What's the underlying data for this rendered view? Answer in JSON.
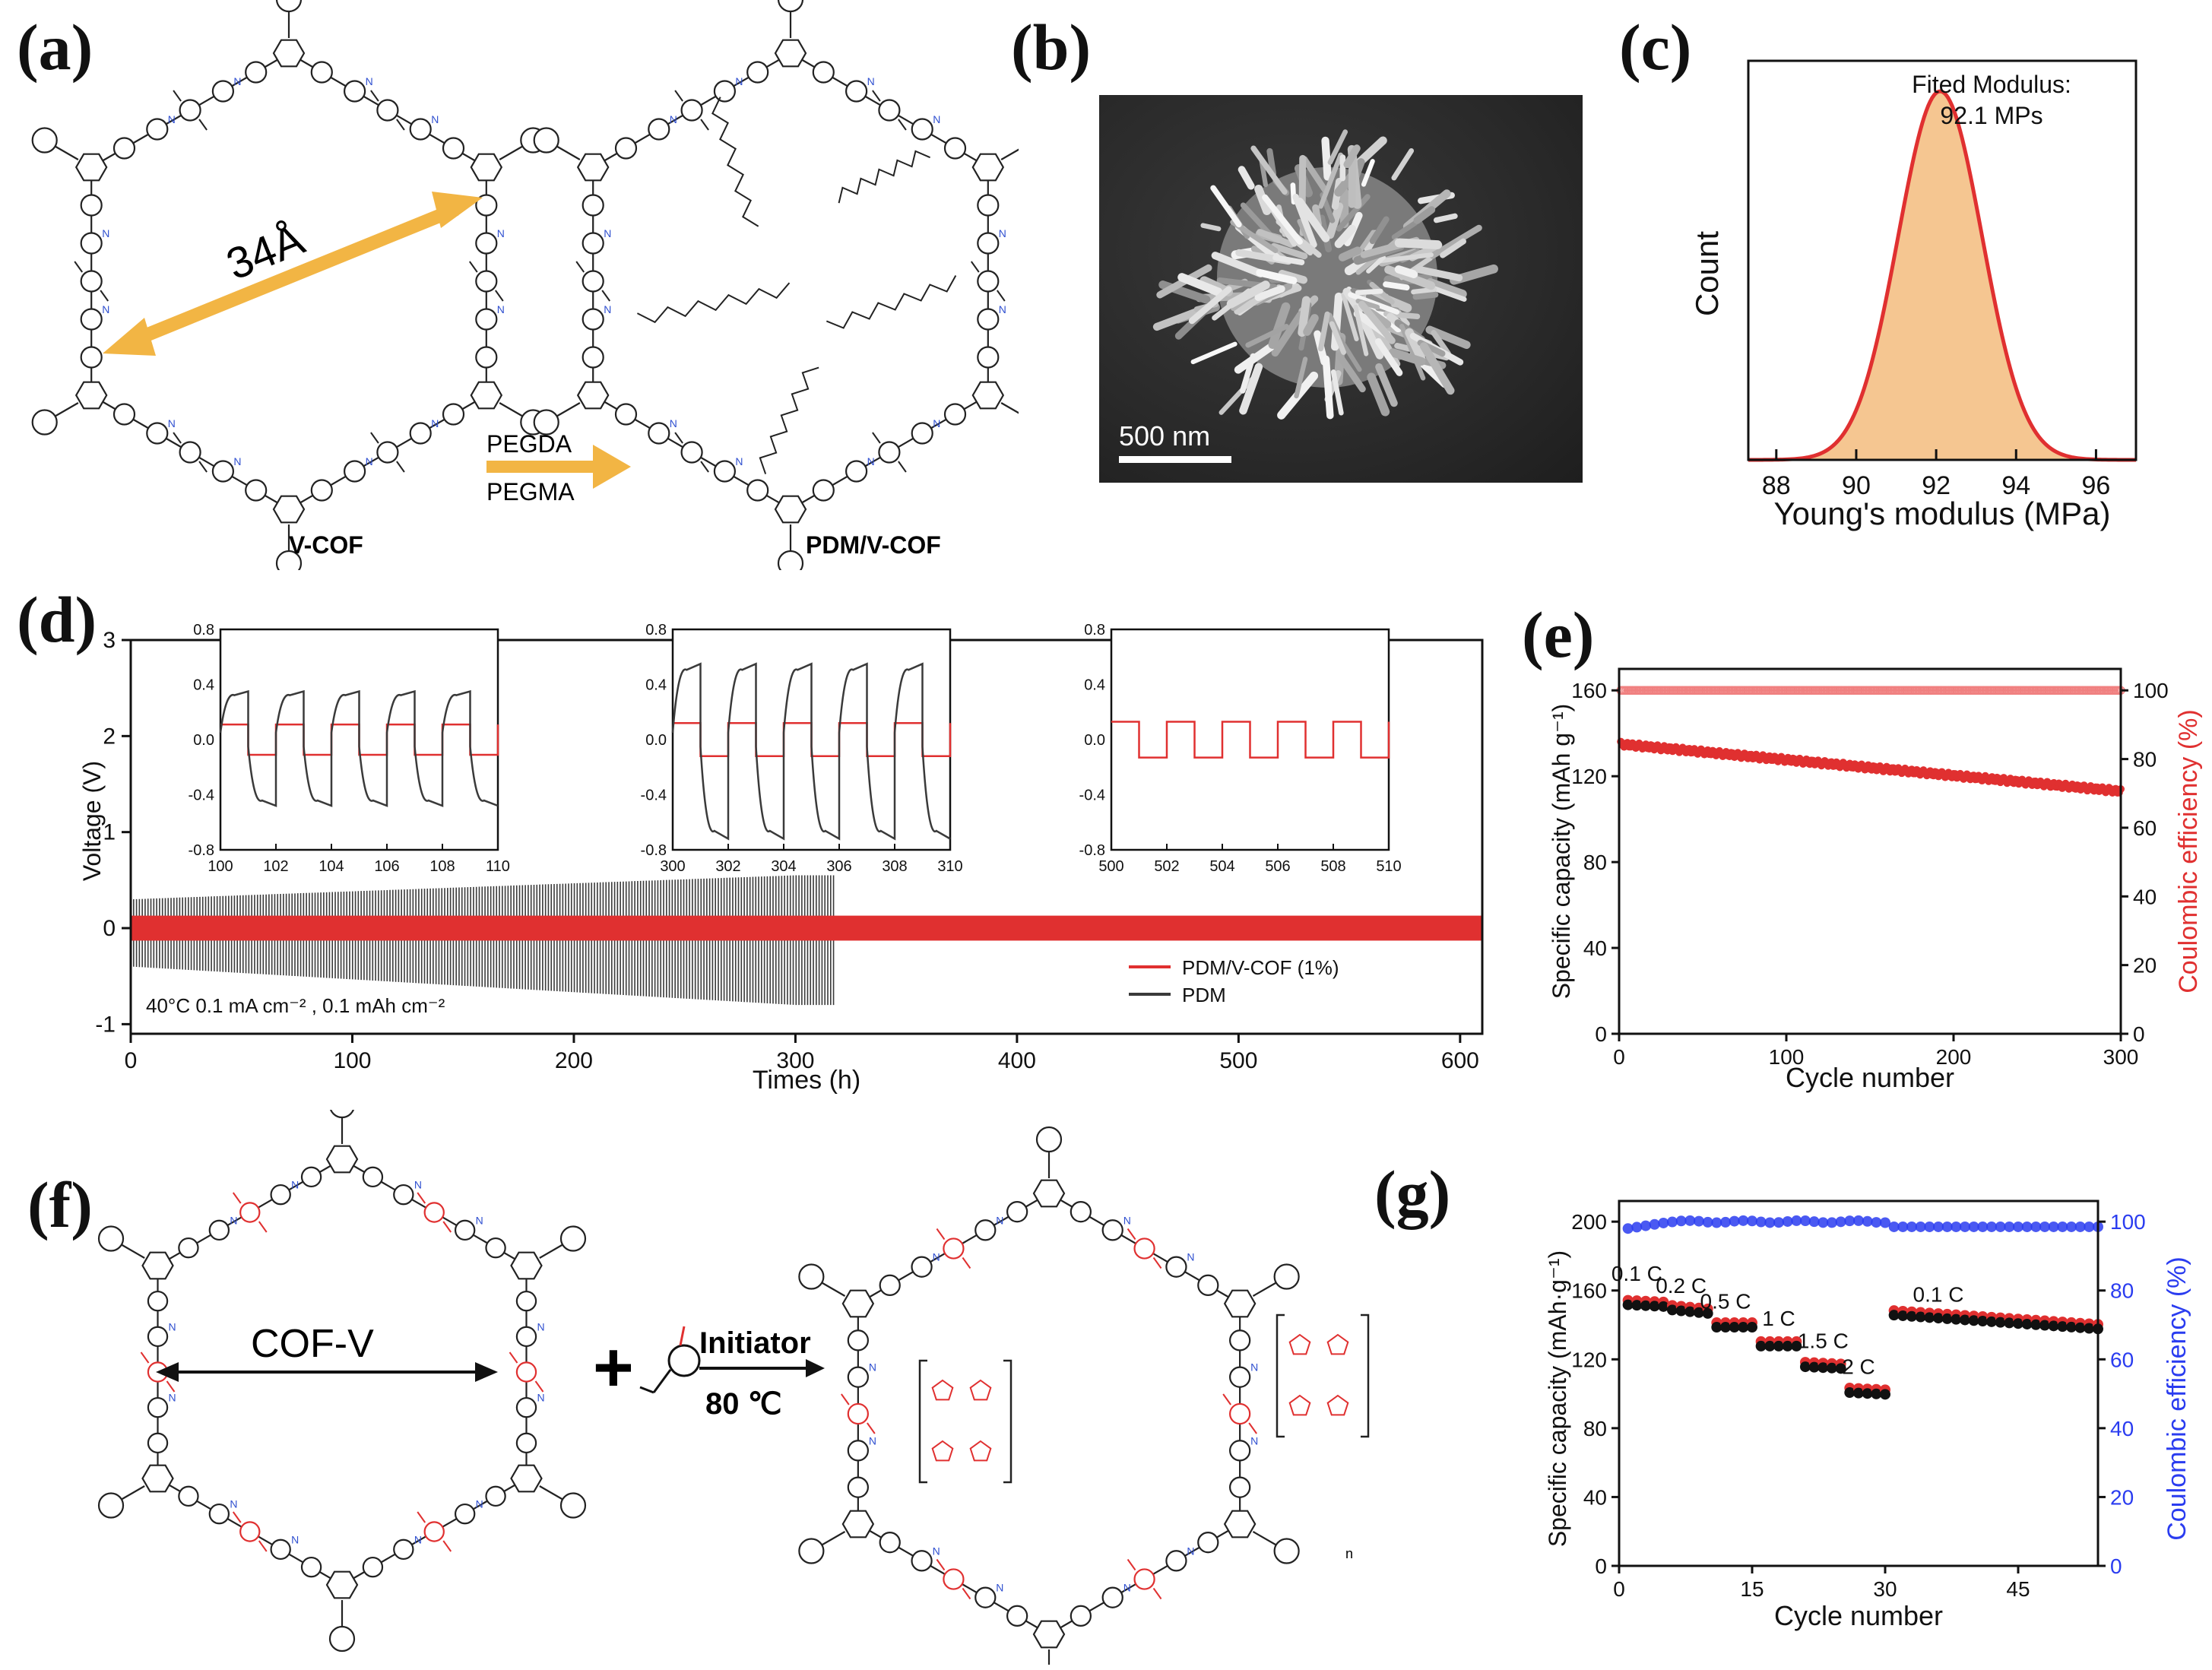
{
  "labels": {
    "a": "(a)",
    "b": "(b)",
    "c": "(c)",
    "d": "(d)",
    "e": "(e)",
    "f": "(f)",
    "g": "(g)"
  },
  "panel_a": {
    "left_name": "V-COF",
    "right_name": "PDM/V-COF",
    "pore": "34Å",
    "reagent_top": "PEGDA",
    "reagent_bottom": "PEGMA"
  },
  "panel_b": {
    "scalebar": "500 nm"
  },
  "panel_f": {
    "left_name": "COF-V",
    "plus": "+",
    "initiator": "Initiator",
    "temp": "80 ℃",
    "subscript": "n"
  },
  "colors": {
    "red": "#e03030",
    "gray": "#3a3a3a",
    "blue": "#2a3cf0",
    "fill": "#f5c691"
  },
  "chart_data": [
    {
      "id": "c",
      "type": "area",
      "title": "",
      "annotation": [
        "Fited Modulus:",
        "92.1 MPs"
      ],
      "xlabel": "Young's modulus (MPa)",
      "ylabel": "Count",
      "xlim": [
        87.3,
        97
      ],
      "xticks": [
        "88",
        "90",
        "92",
        "94",
        "96"
      ],
      "xtick_values": [
        88,
        90,
        92,
        94,
        96
      ],
      "gaussian": {
        "mean": 92.1,
        "sigma": 1.05
      }
    },
    {
      "id": "d",
      "type": "line",
      "xlabel": "Times (h)",
      "ylabel": "Voltage (V)",
      "xlim": [
        0,
        610
      ],
      "ylim": [
        -1.1,
        3
      ],
      "xticks": [
        "0",
        "100",
        "200",
        "300",
        "400",
        "500",
        "600"
      ],
      "xtick_values": [
        0,
        100,
        200,
        300,
        400,
        500,
        600
      ],
      "yticks": [
        "-1",
        "0",
        "1",
        "2",
        "3"
      ],
      "ytick_values": [
        -1,
        0,
        1,
        2,
        3
      ],
      "annotation": "40°C 0.1 mA cm⁻² , 0.1 mAh cm⁻²",
      "series": [
        {
          "name": "PDM/V-COF (1%)",
          "color": "#e03030",
          "amplitude": 0.13,
          "end": 610
        },
        {
          "name": "PDM",
          "color": "#3a3a3a",
          "amplitude_start": 0.3,
          "amplitude_end": 0.55,
          "neg_start": -0.4,
          "neg_end": -0.8,
          "end": 318
        }
      ],
      "insets": [
        {
          "xlim": [
            100,
            110
          ],
          "xticks": [
            "100",
            "102",
            "104",
            "106",
            "108",
            "110"
          ],
          "xtick_values": [
            100,
            102,
            104,
            106,
            108,
            110
          ],
          "ylim": [
            -0.8,
            0.8
          ],
          "yticks": [
            "0.8",
            "0.4",
            "0.0",
            "-0.4",
            "-0.8"
          ],
          "ytick_values": [
            0.8,
            0.4,
            0,
            -0.4,
            -0.8
          ],
          "red_amp": 0.11,
          "gray_pos": 0.35,
          "gray_neg": -0.48
        },
        {
          "xlim": [
            300,
            310
          ],
          "xticks": [
            "300",
            "302",
            "304",
            "306",
            "308",
            "310"
          ],
          "xtick_values": [
            300,
            302,
            304,
            306,
            308,
            310
          ],
          "ylim": [
            -0.8,
            0.8
          ],
          "yticks": [
            "0.8",
            "0.4",
            "0.0",
            "-0.4",
            "-0.8"
          ],
          "ytick_values": [
            0.8,
            0.4,
            0,
            -0.4,
            -0.8
          ],
          "red_amp": 0.12,
          "gray_pos": 0.55,
          "gray_neg": -0.72
        },
        {
          "xlim": [
            500,
            510
          ],
          "xticks": [
            "500",
            "502",
            "504",
            "506",
            "508",
            "510"
          ],
          "xtick_values": [
            500,
            502,
            504,
            506,
            508,
            510
          ],
          "ylim": [
            -0.8,
            0.8
          ],
          "yticks": [
            "0.8",
            "0.4",
            "0.0",
            "-0.4",
            "-0.8"
          ],
          "ytick_values": [
            0.8,
            0.4,
            0,
            -0.4,
            -0.8
          ],
          "red_amp": 0.13,
          "gray_pos": null,
          "gray_neg": null
        }
      ]
    },
    {
      "id": "e",
      "type": "scatter",
      "xlabel": "Cycle number",
      "ylabel": "Specific capacity (mAh g⁻¹)",
      "y2label": "Coulombic efficiency (%)",
      "xlim": [
        0,
        300
      ],
      "ylim": [
        0,
        170
      ],
      "y2lim": [
        0,
        106.25
      ],
      "xticks": [
        "0",
        "100",
        "200",
        "300"
      ],
      "xtick_values": [
        0,
        100,
        200,
        300
      ],
      "yticks": [
        "0",
        "40",
        "80",
        "120",
        "160"
      ],
      "ytick_values": [
        0,
        40,
        80,
        120,
        160
      ],
      "y2ticks": [
        "0",
        "20",
        "40",
        "60",
        "80",
        "100"
      ],
      "y2tick_values": [
        0,
        20,
        40,
        60,
        80,
        100
      ],
      "capacity": {
        "start": 135,
        "end": 113
      },
      "efficiency": 100
    },
    {
      "id": "g",
      "type": "scatter",
      "xlabel": "Cycle number",
      "ylabel": "Specific capacity (mAh·g⁻¹)",
      "y2label": "Coulombic efficiency (%)",
      "xlim": [
        0,
        54
      ],
      "ylim": [
        0,
        212
      ],
      "y2lim": [
        0,
        106
      ],
      "xticks": [
        "0",
        "15",
        "30",
        "45"
      ],
      "xtick_values": [
        0,
        15,
        30,
        45
      ],
      "yticks": [
        "0",
        "40",
        "80",
        "120",
        "160",
        "200"
      ],
      "ytick_values": [
        0,
        40,
        80,
        120,
        160,
        200
      ],
      "y2ticks": [
        "0",
        "20",
        "40",
        "60",
        "80",
        "100"
      ],
      "y2tick_values": [
        0,
        20,
        40,
        60,
        80,
        100
      ],
      "rates": [
        {
          "label": "0.1 C",
          "start": 1,
          "end": 5,
          "cap_start": 153,
          "cap_end": 152
        },
        {
          "label": "0.2 C",
          "start": 6,
          "end": 10,
          "cap_start": 150,
          "cap_end": 148
        },
        {
          "label": "0.5 C",
          "start": 11,
          "end": 15,
          "cap_start": 140,
          "cap_end": 140
        },
        {
          "label": "1 C",
          "start": 16,
          "end": 20,
          "cap_start": 129,
          "cap_end": 129
        },
        {
          "label": "1.5 C",
          "start": 21,
          "end": 25,
          "cap_start": 117,
          "cap_end": 116
        },
        {
          "label": "2 C",
          "start": 26,
          "end": 30,
          "cap_start": 102,
          "cap_end": 101
        },
        {
          "label": "0.1 C",
          "start": 31,
          "end": 54,
          "cap_start": 147,
          "cap_end": 139
        }
      ],
      "efficiency": {
        "first": 98,
        "mid": 100,
        "after": 98.5
      }
    }
  ]
}
